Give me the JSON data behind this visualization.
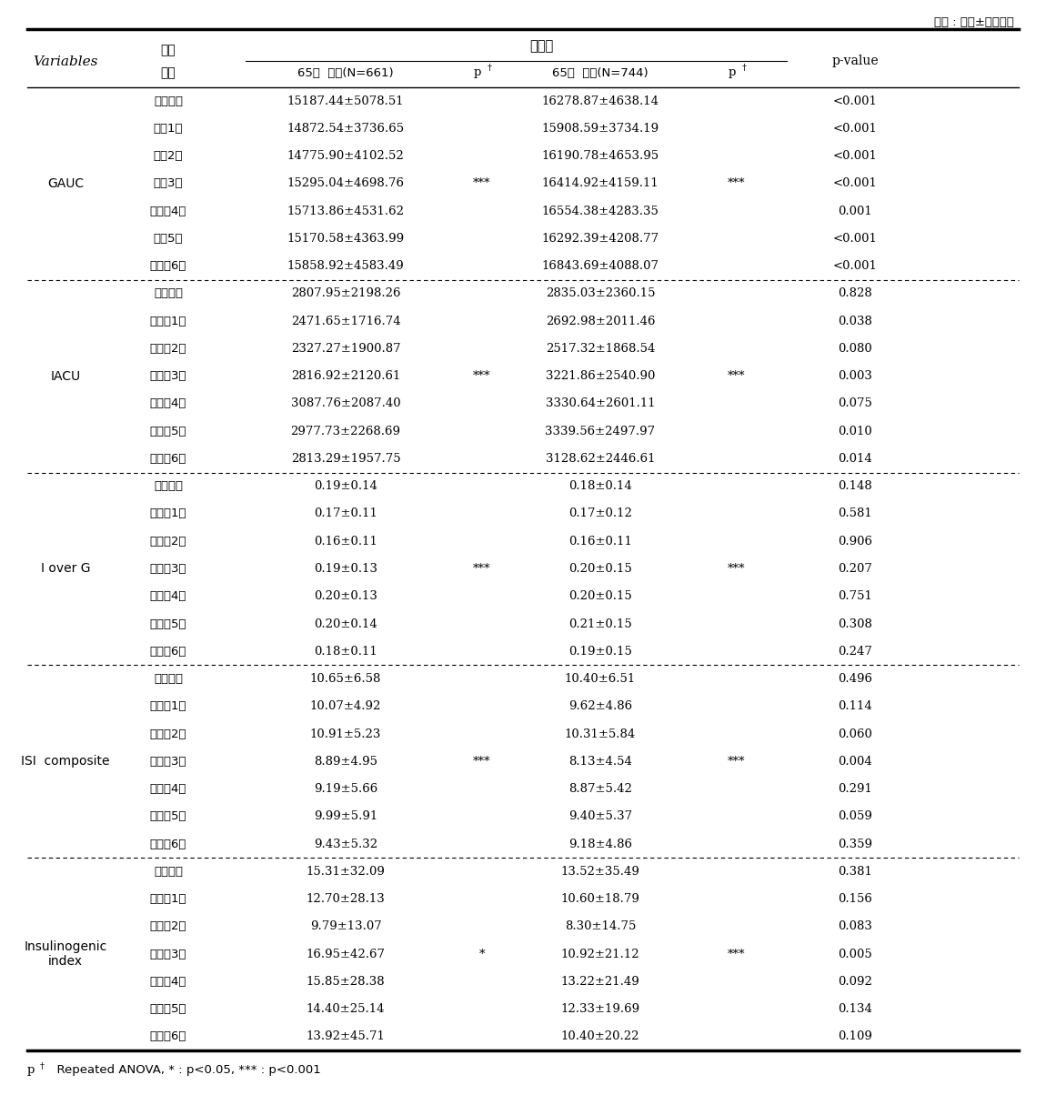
{
  "unit_label": "단위 : 평균±표준편차",
  "footnote": "p†  Repeated ANOVA, * : p<0.05, *** : p<0.001",
  "sections": [
    {
      "variable": "GAUC",
      "rows": [
        [
          "기초검사",
          "15187.44±5078.51",
          "",
          "16278.87±4638.14",
          "",
          "<0.001"
        ],
        [
          "추적1기",
          "14872.54±3736.65",
          "",
          "15908.59±3734.19",
          "",
          "<0.001"
        ],
        [
          "추적2기",
          "14775.90±4102.52",
          "",
          "16190.78±4653.95",
          "",
          "<0.001"
        ],
        [
          "추적3기",
          "15295.04±4698.76",
          "***",
          "16414.92±4159.11",
          "***",
          "<0.001"
        ],
        [
          "추적싴4기",
          "15713.86±4531.62",
          "",
          "16554.38±4283.35",
          "",
          "0.001"
        ],
        [
          "추적5기",
          "15170.58±4363.99",
          "",
          "16292.39±4208.77",
          "",
          "<0.001"
        ],
        [
          "추적싴6기",
          "15858.92±4583.49",
          "",
          "16843.69±4088.07",
          "",
          "<0.001"
        ]
      ]
    },
    {
      "variable": "IACU",
      "rows": [
        [
          "기초검사",
          "2807.95±2198.26",
          "",
          "2835.03±2360.15",
          "",
          "0.828"
        ],
        [
          "추적싴1기",
          "2471.65±1716.74",
          "",
          "2692.98±2011.46",
          "",
          "0.038"
        ],
        [
          "추적싴2기",
          "2327.27±1900.87",
          "",
          "2517.32±1868.54",
          "",
          "0.080"
        ],
        [
          "추적싴3기",
          "2816.92±2120.61",
          "***",
          "3221.86±2540.90",
          "***",
          "0.003"
        ],
        [
          "추적싴4기",
          "3087.76±2087.40",
          "",
          "3330.64±2601.11",
          "",
          "0.075"
        ],
        [
          "추적싴5기",
          "2977.73±2268.69",
          "",
          "3339.56±2497.97",
          "",
          "0.010"
        ],
        [
          "추적싴6기",
          "2813.29±1957.75",
          "",
          "3128.62±2446.61",
          "",
          "0.014"
        ]
      ]
    },
    {
      "variable": "I over G",
      "rows": [
        [
          "기초검사",
          "0.19±0.14",
          "",
          "0.18±0.14",
          "",
          "0.148"
        ],
        [
          "추적싴1기",
          "0.17±0.11",
          "",
          "0.17±0.12",
          "",
          "0.581"
        ],
        [
          "추적싴2기",
          "0.16±0.11",
          "",
          "0.16±0.11",
          "",
          "0.906"
        ],
        [
          "추적싴3기",
          "0.19±0.13",
          "***",
          "0.20±0.15",
          "***",
          "0.207"
        ],
        [
          "추적싴4기",
          "0.20±0.13",
          "",
          "0.20±0.15",
          "",
          "0.751"
        ],
        [
          "추적싴5기",
          "0.20±0.14",
          "",
          "0.21±0.15",
          "",
          "0.308"
        ],
        [
          "추적싴6기",
          "0.18±0.11",
          "",
          "0.19±0.15",
          "",
          "0.247"
        ]
      ]
    },
    {
      "variable": "ISI  composite",
      "rows": [
        [
          "기초검사",
          "10.65±6.58",
          "",
          "10.40±6.51",
          "",
          "0.496"
        ],
        [
          "추적싴1기",
          "10.07±4.92",
          "",
          "9.62±4.86",
          "",
          "0.114"
        ],
        [
          "추적싴2기",
          "10.91±5.23",
          "",
          "10.31±5.84",
          "",
          "0.060"
        ],
        [
          "추적싴3기",
          "8.89±4.95",
          "***",
          "8.13±4.54",
          "***",
          "0.004"
        ],
        [
          "추적싴4기",
          "9.19±5.66",
          "",
          "8.87±5.42",
          "",
          "0.291"
        ],
        [
          "추적싴5기",
          "9.99±5.91",
          "",
          "9.40±5.37",
          "",
          "0.059"
        ],
        [
          "추적싴6기",
          "9.43±5.32",
          "",
          "9.18±4.86",
          "",
          "0.359"
        ]
      ]
    },
    {
      "variable": "Insulinogenic\nindex",
      "rows": [
        [
          "기초검사",
          "15.31±32.09",
          "",
          "13.52±35.49",
          "",
          "0.381"
        ],
        [
          "추적싴1기",
          "12.70±28.13",
          "",
          "10.60±18.79",
          "",
          "0.156"
        ],
        [
          "추적싴2기",
          "9.79±13.07",
          "",
          "8.30±14.75",
          "",
          "0.083"
        ],
        [
          "추적싴3기",
          "16.95±42.67",
          "*",
          "10.92±21.12",
          "***",
          "0.005"
        ],
        [
          "추적싴4기",
          "15.85±28.38",
          "",
          "13.22±21.49",
          "",
          "0.092"
        ],
        [
          "추적싴5기",
          "14.40±25.14",
          "",
          "12.33±19.69",
          "",
          "0.134"
        ],
        [
          "추적싴6기",
          "13.92±45.71",
          "",
          "10.40±20.22",
          "",
          "0.109"
        ]
      ]
    }
  ]
}
